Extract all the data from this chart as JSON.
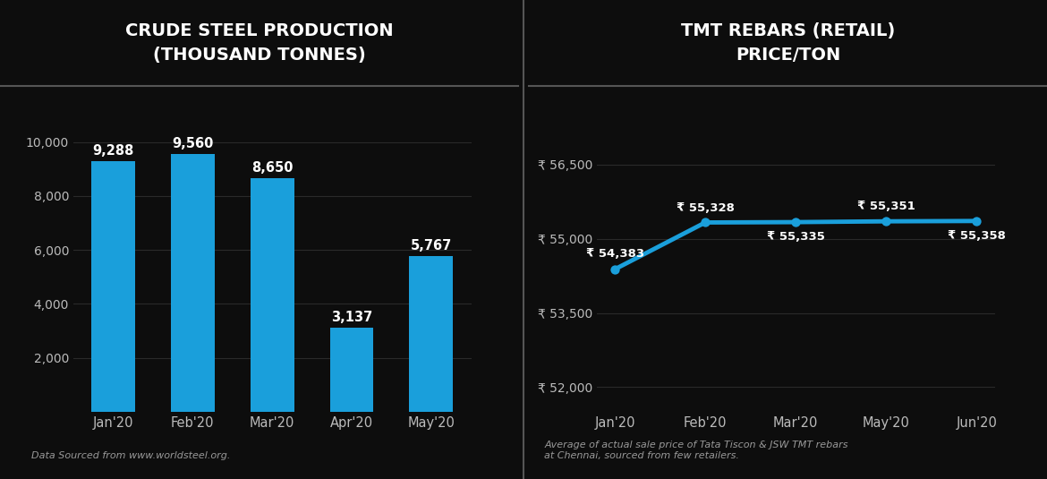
{
  "bg_color": "#0d0d0d",
  "header_bg": "#1a1a1a",
  "title_color": "#ffffff",
  "axis_text_color": "#bbbbbb",
  "bar_color": "#1a9fdb",
  "line_color": "#1a9fdb",
  "divider_color": "#555555",
  "grid_color": "#2a2a2a",
  "bar_title": "CRUDE STEEL PRODUCTION\n(THOUSAND TONNES)",
  "bar_categories": [
    "Jan'20",
    "Feb'20",
    "Mar'20",
    "Apr'20",
    "May'20"
  ],
  "bar_values": [
    9288,
    9560,
    8650,
    3137,
    5767
  ],
  "bar_ylim": [
    0,
    11000
  ],
  "bar_yticks": [
    2000,
    4000,
    6000,
    8000,
    10000
  ],
  "bar_source": "Data Sourced from www.worldsteel.org.",
  "line_title": "TMT REBARS (RETAIL)\nPRICE/TON",
  "line_categories": [
    "Jan'20",
    "Feb'20",
    "Mar'20",
    "May'20",
    "Jun'20"
  ],
  "line_values": [
    54383,
    55328,
    55335,
    55351,
    55358
  ],
  "line_ylim": [
    51500,
    57500
  ],
  "line_yticks": [
    52000,
    53500,
    55000,
    56500
  ],
  "line_ytick_labels": [
    "₹ 52,000",
    "₹ 53,500",
    "₹ 55,000",
    "₹ 56,500"
  ],
  "line_labels": [
    "₹ 54,383",
    "₹ 55,328",
    "₹ 55,335",
    "₹ 55,351",
    "₹ 55,358"
  ],
  "line_label_dy": [
    200,
    180,
    -180,
    180,
    -180
  ],
  "line_source": "Average of actual sale price of Tata Tiscon & JSW TMT rebars\nat Chennai, sourced from few retailers."
}
